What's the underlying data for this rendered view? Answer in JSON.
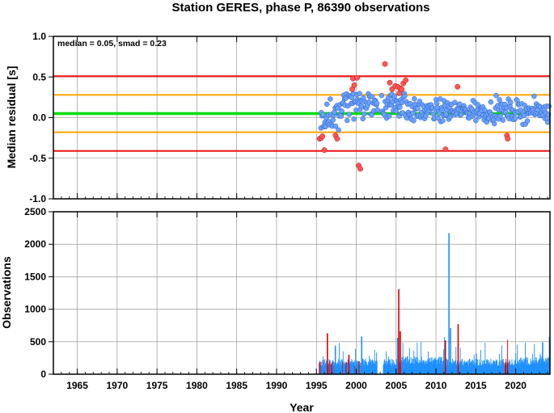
{
  "title": "Station GERES, phase P, 86390 observations",
  "colors": {
    "median": "#00dd00",
    "one_smad": "#ffa500",
    "two_smad": "#ee1111",
    "normal": "#6aa1ff",
    "outlier": "#ff5555",
    "bar_normal": "#1e90ff",
    "bar_outlier": "#dd0000",
    "grid": "#888888"
  },
  "chart_data": [
    {
      "type": "scatter",
      "title": "Station GERES, phase P, 86390 observations",
      "ylabel": "Median residual [s]",
      "xlim": [
        1962,
        2024.3
      ],
      "ylim": [
        -1.0,
        1.0
      ],
      "yticks": [
        "-1.0",
        "-0.5",
        "0.0",
        "0.5",
        "1.0"
      ],
      "grid": true,
      "annotation": "median = 0.05, smad = 0.23",
      "reference_lines": [
        {
          "name": "median",
          "value": 0.05
        },
        {
          "name": "+1 smad",
          "value": 0.28
        },
        {
          "name": "-1 smad",
          "value": -0.18
        },
        {
          "name": "+2 smad",
          "value": 0.51
        },
        {
          "name": "-2 smad",
          "value": -0.41
        }
      ],
      "outliers": [
        {
          "x": 1995.4,
          "y": -0.26
        },
        {
          "x": 1995.6,
          "y": -0.25
        },
        {
          "x": 1995.75,
          "y": -0.23
        },
        {
          "x": 1996.0,
          "y": -0.4
        },
        {
          "x": 1997.4,
          "y": -0.22
        },
        {
          "x": 1997.6,
          "y": -0.26
        },
        {
          "x": 1999.5,
          "y": 0.35
        },
        {
          "x": 1999.6,
          "y": 0.48
        },
        {
          "x": 1999.75,
          "y": 0.4
        },
        {
          "x": 2000.1,
          "y": 0.49
        },
        {
          "x": 2000.3,
          "y": -0.59
        },
        {
          "x": 2000.5,
          "y": -0.63
        },
        {
          "x": 2003.6,
          "y": 0.66
        },
        {
          "x": 2004.2,
          "y": 0.43
        },
        {
          "x": 2004.5,
          "y": 0.35
        },
        {
          "x": 2004.9,
          "y": 0.39
        },
        {
          "x": 2005.2,
          "y": 0.38
        },
        {
          "x": 2005.4,
          "y": 0.3
        },
        {
          "x": 2005.5,
          "y": 0.36
        },
        {
          "x": 2005.7,
          "y": 0.35
        },
        {
          "x": 2005.9,
          "y": 0.42
        },
        {
          "x": 2006.2,
          "y": 0.46
        },
        {
          "x": 2011.2,
          "y": -0.39
        },
        {
          "x": 2012.7,
          "y": 0.38
        },
        {
          "x": 2018.9,
          "y": -0.22
        },
        {
          "x": 2019.0,
          "y": -0.26
        }
      ]
    },
    {
      "type": "bar",
      "ylabel": "Observations",
      "xlabel": "Year",
      "xlim": [
        1962,
        2024.3
      ],
      "ylim": [
        0,
        2500
      ],
      "xticks": [
        "1965",
        "1970",
        "1975",
        "1980",
        "1985",
        "1990",
        "1995",
        "2000",
        "2005",
        "2010",
        "2015",
        "2020"
      ],
      "yticks": [
        "0",
        "500",
        "1000",
        "1500",
        "2000",
        "2500"
      ],
      "grid": true,
      "series_ranges": [
        {
          "name": "counts",
          "x_from": 1995.3,
          "x_to": 2024.2,
          "typical_value": 200
        }
      ],
      "peaks": [
        {
          "x": 1996.3,
          "value": 630,
          "outlier": true
        },
        {
          "x": 1997.3,
          "value": 440,
          "outlier": false
        },
        {
          "x": 1999.0,
          "value": 300,
          "outlier": true
        },
        {
          "x": 2000.6,
          "value": 580,
          "outlier": false
        },
        {
          "x": 2005.1,
          "value": 560,
          "outlier": false
        },
        {
          "x": 2005.25,
          "value": 1310,
          "outlier": true
        },
        {
          "x": 2005.45,
          "value": 660,
          "outlier": true
        },
        {
          "x": 2011.1,
          "value": 520,
          "outlier": true
        },
        {
          "x": 2011.55,
          "value": 2170,
          "outlier": false
        },
        {
          "x": 2011.75,
          "value": 710,
          "outlier": false
        },
        {
          "x": 2012.7,
          "value": 770,
          "outlier": true
        },
        {
          "x": 2018.9,
          "value": 180,
          "outlier": true
        },
        {
          "x": 2023.3,
          "value": 490,
          "outlier": false
        }
      ]
    }
  ]
}
